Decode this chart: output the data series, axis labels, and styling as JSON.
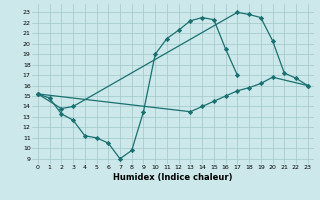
{
  "xlabel": "Humidex (Indice chaleur)",
  "background_color": "#cce8ea",
  "grid_color": "#a0c8c8",
  "line_color": "#1a7070",
  "xlim": [
    -0.5,
    23.5
  ],
  "ylim": [
    8.5,
    23.8
  ],
  "yticks": [
    9,
    10,
    11,
    12,
    13,
    14,
    15,
    16,
    17,
    18,
    19,
    20,
    21,
    22,
    23
  ],
  "xticks": [
    0,
    1,
    2,
    3,
    4,
    5,
    6,
    7,
    8,
    9,
    10,
    11,
    12,
    13,
    14,
    15,
    16,
    17,
    18,
    19,
    20,
    21,
    22,
    23
  ],
  "line1_x": [
    0,
    1,
    2,
    3,
    4,
    5,
    6,
    7,
    8,
    9,
    10,
    11,
    12,
    13,
    14,
    15,
    16,
    17
  ],
  "line1_y": [
    15.2,
    14.8,
    13.3,
    12.7,
    11.2,
    11.0,
    10.5,
    9.0,
    9.8,
    13.5,
    19.0,
    20.5,
    21.3,
    22.2,
    22.5,
    22.3,
    19.5,
    17.0
  ],
  "line2_x": [
    0,
    2,
    3,
    17,
    18,
    19,
    20,
    21,
    22,
    23
  ],
  "line2_y": [
    15.2,
    13.8,
    14.0,
    23.0,
    22.8,
    22.5,
    20.3,
    17.2,
    16.7,
    16.0
  ],
  "line3_x": [
    0,
    13,
    14,
    15,
    16,
    17,
    18,
    19,
    20,
    23
  ],
  "line3_y": [
    15.2,
    13.5,
    14.0,
    14.5,
    15.0,
    15.5,
    15.8,
    16.2,
    16.8,
    16.0
  ]
}
